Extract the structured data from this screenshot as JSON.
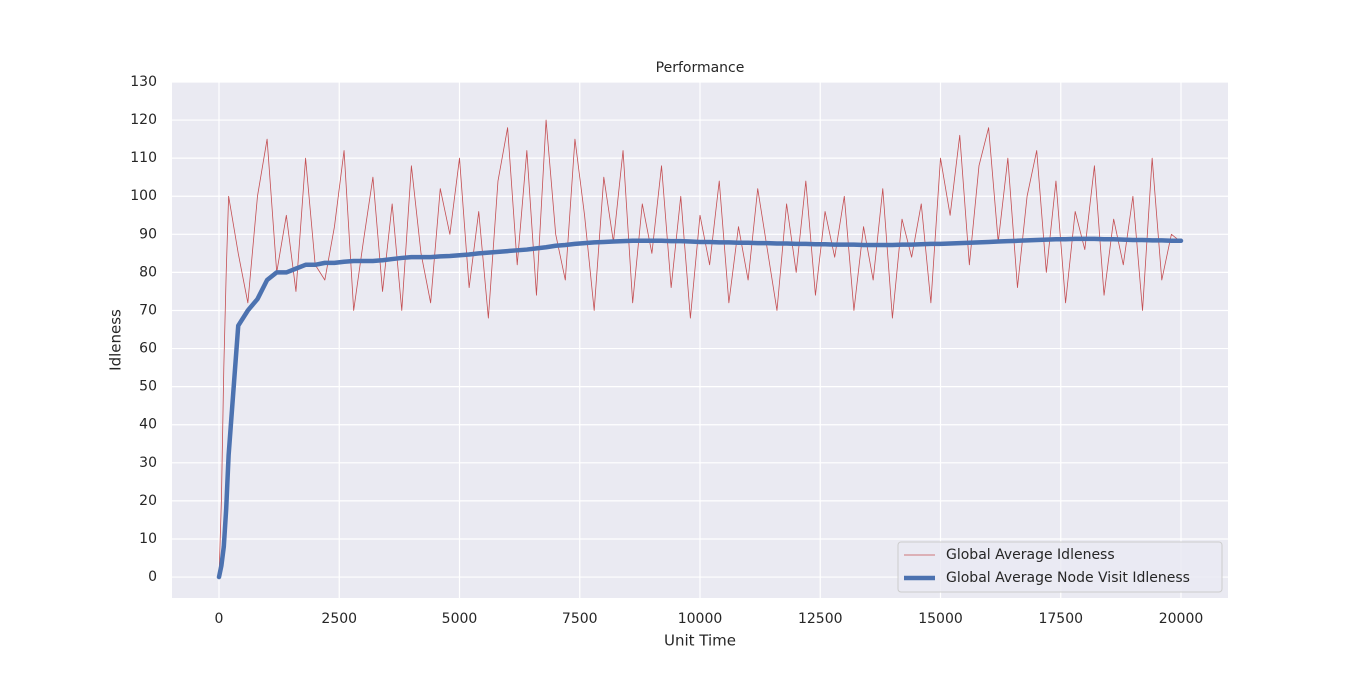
{
  "chart_data": {
    "type": "line",
    "title": "Performance",
    "x_label": "Unit Time",
    "y_label": "Idleness",
    "x": [
      0,
      50,
      100,
      150,
      200,
      400,
      600,
      800,
      1000,
      1200,
      1400,
      1600,
      1800,
      2000,
      2200,
      2400,
      2600,
      2800,
      3000,
      3200,
      3400,
      3600,
      3800,
      4000,
      4200,
      4400,
      4600,
      4800,
      5000,
      5200,
      5400,
      5600,
      5800,
      6000,
      6200,
      6400,
      6600,
      6800,
      7000,
      7200,
      7400,
      7600,
      7800,
      8000,
      8200,
      8400,
      8600,
      8800,
      9000,
      9200,
      9400,
      9600,
      9800,
      10000,
      10200,
      10400,
      10600,
      10800,
      11000,
      11200,
      11400,
      11600,
      11800,
      12000,
      12200,
      12400,
      12600,
      12800,
      13000,
      13200,
      13400,
      13600,
      13800,
      14000,
      14200,
      14400,
      14600,
      14800,
      15000,
      15200,
      15400,
      15600,
      15800,
      16000,
      16200,
      16400,
      16600,
      16800,
      17000,
      17200,
      17400,
      17600,
      17800,
      18000,
      18200,
      18400,
      18600,
      18800,
      19000,
      19200,
      19400,
      19600,
      19800,
      20000
    ],
    "series": [
      {
        "name": "Global Average Idleness",
        "color": "#c44e52",
        "width": 0.8,
        "values": [
          0,
          20,
          55,
          80,
          100,
          85,
          72,
          100,
          115,
          80,
          95,
          75,
          110,
          82,
          78,
          92,
          112,
          70,
          88,
          105,
          75,
          98,
          70,
          108,
          85,
          72,
          102,
          90,
          110,
          76,
          96,
          68,
          104,
          118,
          82,
          112,
          74,
          120,
          90,
          78,
          115,
          95,
          70,
          105,
          88,
          112,
          72,
          98,
          85,
          108,
          76,
          100,
          68,
          95,
          82,
          104,
          72,
          92,
          78,
          102,
          86,
          70,
          98,
          80,
          104,
          74,
          96,
          84,
          100,
          70,
          92,
          78,
          102,
          68,
          94,
          84,
          98,
          72,
          110,
          95,
          116,
          82,
          108,
          118,
          88,
          110,
          76,
          100,
          112,
          80,
          104,
          72,
          96,
          86,
          108,
          74,
          94,
          82,
          100,
          70,
          110,
          78,
          90,
          88
        ]
      },
      {
        "name": "Global Average Node Visit Idleness",
        "color": "#4c72b0",
        "width": 4.5,
        "values": [
          0,
          3,
          8,
          18,
          32,
          66,
          70,
          73,
          78,
          80,
          80,
          81,
          82,
          82,
          82.5,
          82.5,
          82.8,
          83,
          83,
          83,
          83.2,
          83.5,
          83.8,
          84,
          84,
          84,
          84.2,
          84.3,
          84.5,
          84.7,
          85,
          85.2,
          85.4,
          85.6,
          85.8,
          86,
          86.3,
          86.6,
          87,
          87.2,
          87.5,
          87.7,
          87.9,
          88,
          88.1,
          88.2,
          88.3,
          88.3,
          88.3,
          88.3,
          88.2,
          88.2,
          88.1,
          88,
          88,
          87.9,
          87.9,
          87.8,
          87.8,
          87.7,
          87.7,
          87.6,
          87.6,
          87.5,
          87.5,
          87.4,
          87.4,
          87.3,
          87.3,
          87.3,
          87.2,
          87.2,
          87.2,
          87.2,
          87.3,
          87.3,
          87.4,
          87.5,
          87.5,
          87.6,
          87.7,
          87.8,
          87.9,
          88,
          88.1,
          88.2,
          88.3,
          88.4,
          88.5,
          88.6,
          88.7,
          88.7,
          88.8,
          88.8,
          88.8,
          88.7,
          88.7,
          88.6,
          88.5,
          88.5,
          88.4,
          88.4,
          88.3,
          88.3
        ]
      }
    ],
    "xlim": [
      -977,
      20977
    ],
    "ylim": [
      -5.5,
      130
    ],
    "xticks": [
      0,
      2500,
      5000,
      7500,
      10000,
      12500,
      15000,
      17500,
      20000
    ],
    "yticks": [
      0,
      10,
      20,
      30,
      40,
      50,
      60,
      70,
      80,
      90,
      100,
      110,
      120,
      130
    ],
    "grid": true,
    "legend": "lower right"
  }
}
